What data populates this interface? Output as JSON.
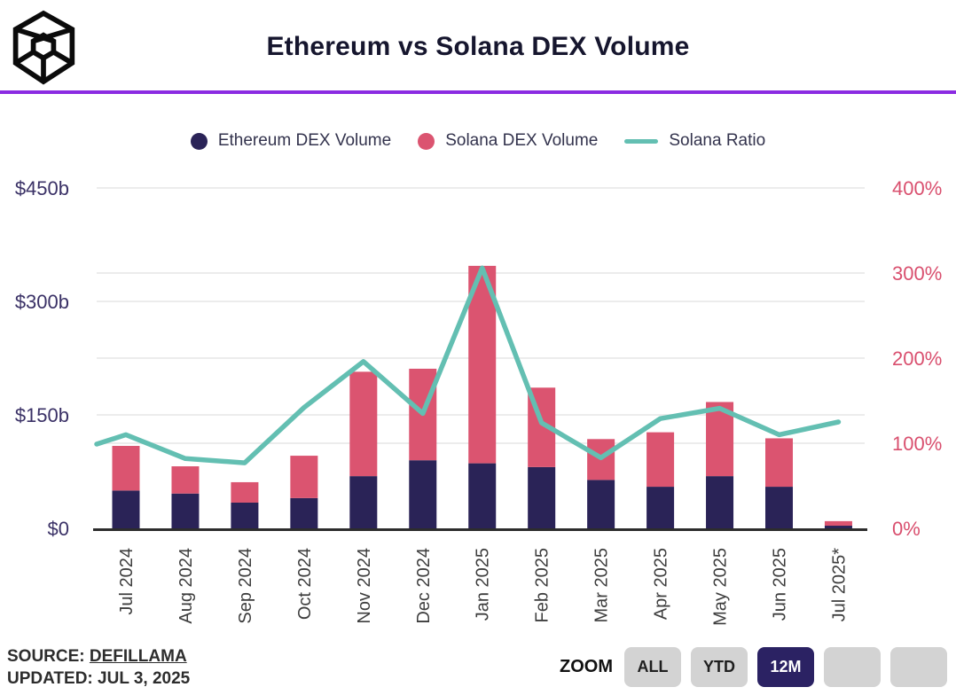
{
  "header": {
    "title": "Ethereum vs Solana DEX Volume"
  },
  "logo": {
    "name": "block-cube-logo"
  },
  "colors": {
    "accent_divider": "#8b2be2",
    "ethereum_navy": "#2a2357",
    "solana_pink": "#db5470",
    "ratio_teal": "#63bfb2",
    "left_axis_text": "#3a3166",
    "right_axis_text": "#d94f6e",
    "x_axis_text": "#3d3d3d",
    "gridline": "#ececec",
    "axis_line": "#2d2d2d",
    "active_button_bg": "#2b2263",
    "active_button_text": "#ffffff"
  },
  "legend": {
    "items": [
      {
        "label": "Ethereum DEX Volume",
        "swatch": "dot",
        "color": "#2a2357"
      },
      {
        "label": "Solana DEX Volume",
        "swatch": "dot",
        "color": "#db5470"
      },
      {
        "label": "Solana Ratio",
        "swatch": "line",
        "color": "#63bfb2"
      }
    ]
  },
  "chart_data": {
    "type": "combo-stacked-bar-line",
    "title": "Ethereum vs Solana DEX Volume",
    "categories": [
      "Jul 2024",
      "Aug 2024",
      "Sep 2024",
      "Oct 2024",
      "Nov 2024",
      "Dec 2024",
      "Jan 2025",
      "Feb 2025",
      "Mar 2025",
      "Apr 2025",
      "May 2025",
      "Jun 2025",
      "Jul 2025*"
    ],
    "series": [
      {
        "name": "Ethereum DEX Volume",
        "type": "bar",
        "stack": "dex",
        "unit": "billions USD",
        "color": "#2a2357",
        "values": [
          50,
          46,
          34,
          40,
          69,
          90,
          86,
          81,
          64,
          55,
          69,
          55,
          3.5
        ]
      },
      {
        "name": "Solana DEX Volume",
        "type": "bar",
        "stack": "dex",
        "unit": "billions USD",
        "color": "#db5470",
        "values": [
          59,
          36,
          27,
          56,
          138,
          121,
          261,
          105,
          54,
          72,
          98,
          64,
          6
        ]
      },
      {
        "name": "Solana Ratio",
        "type": "line",
        "axis": "right",
        "unit": "percent",
        "color": "#63bfb2",
        "edge_start_value": 99,
        "values": [
          110,
          82,
          77,
          142,
          196,
          135,
          306,
          124,
          83,
          129,
          141,
          110,
          125
        ]
      }
    ],
    "left_axis": {
      "ticks": [
        "$0",
        "$150b",
        "$300b",
        "$450b"
      ],
      "tick_values": [
        0,
        150,
        300,
        450
      ],
      "max": 450
    },
    "right_axis": {
      "ticks": [
        "0%",
        "100%",
        "200%",
        "300%",
        "400%"
      ],
      "tick_values": [
        0,
        100,
        200,
        300,
        400
      ],
      "max": 400
    },
    "grid": true,
    "legend_position": "top-center"
  },
  "footer": {
    "source_label": "SOURCE:",
    "source_link": "DEFILLAMA",
    "updated": "UPDATED: JUL 3, 2025"
  },
  "zoom_control": {
    "label": "ZOOM",
    "buttons": [
      {
        "label": "ALL",
        "active": false
      },
      {
        "label": "YTD",
        "active": false
      },
      {
        "label": "12M",
        "active": true
      },
      {
        "label": "",
        "active": false
      },
      {
        "label": "",
        "active": false
      }
    ]
  }
}
